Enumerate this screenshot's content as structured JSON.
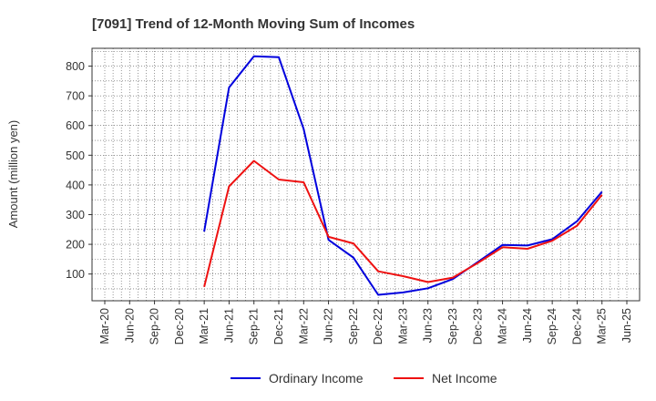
{
  "chart_data": {
    "type": "line",
    "title": "[7091]  Trend of 12-Month Moving Sum of Incomes",
    "xlabel": "",
    "ylabel": "Amount (million yen)",
    "ylim": [
      10,
      860
    ],
    "yticks": [
      100,
      200,
      300,
      400,
      500,
      600,
      700,
      800
    ],
    "grid": true,
    "legend_position": "bottom-center",
    "categories": [
      "Mar-20",
      "Jun-20",
      "Sep-20",
      "Dec-20",
      "Mar-21",
      "Jun-21",
      "Sep-21",
      "Dec-21",
      "Mar-22",
      "Jun-22",
      "Sep-22",
      "Dec-22",
      "Mar-23",
      "Jun-23",
      "Sep-23",
      "Dec-23",
      "Mar-24",
      "Jun-24",
      "Sep-24",
      "Dec-24",
      "Mar-25",
      "Jun-25"
    ],
    "series": [
      {
        "name": "Ordinary Income",
        "color": "#0000dd",
        "values": [
          null,
          null,
          null,
          null,
          243,
          728,
          833,
          830,
          588,
          215,
          155,
          30,
          38,
          52,
          83,
          140,
          198,
          196,
          217,
          278,
          377,
          null
        ]
      },
      {
        "name": "Net Income",
        "color": "#ee1111",
        "values": [
          null,
          null,
          null,
          null,
          57,
          395,
          481,
          418,
          409,
          225,
          203,
          109,
          93,
          73,
          88,
          137,
          190,
          185,
          212,
          263,
          367,
          null
        ]
      }
    ]
  }
}
